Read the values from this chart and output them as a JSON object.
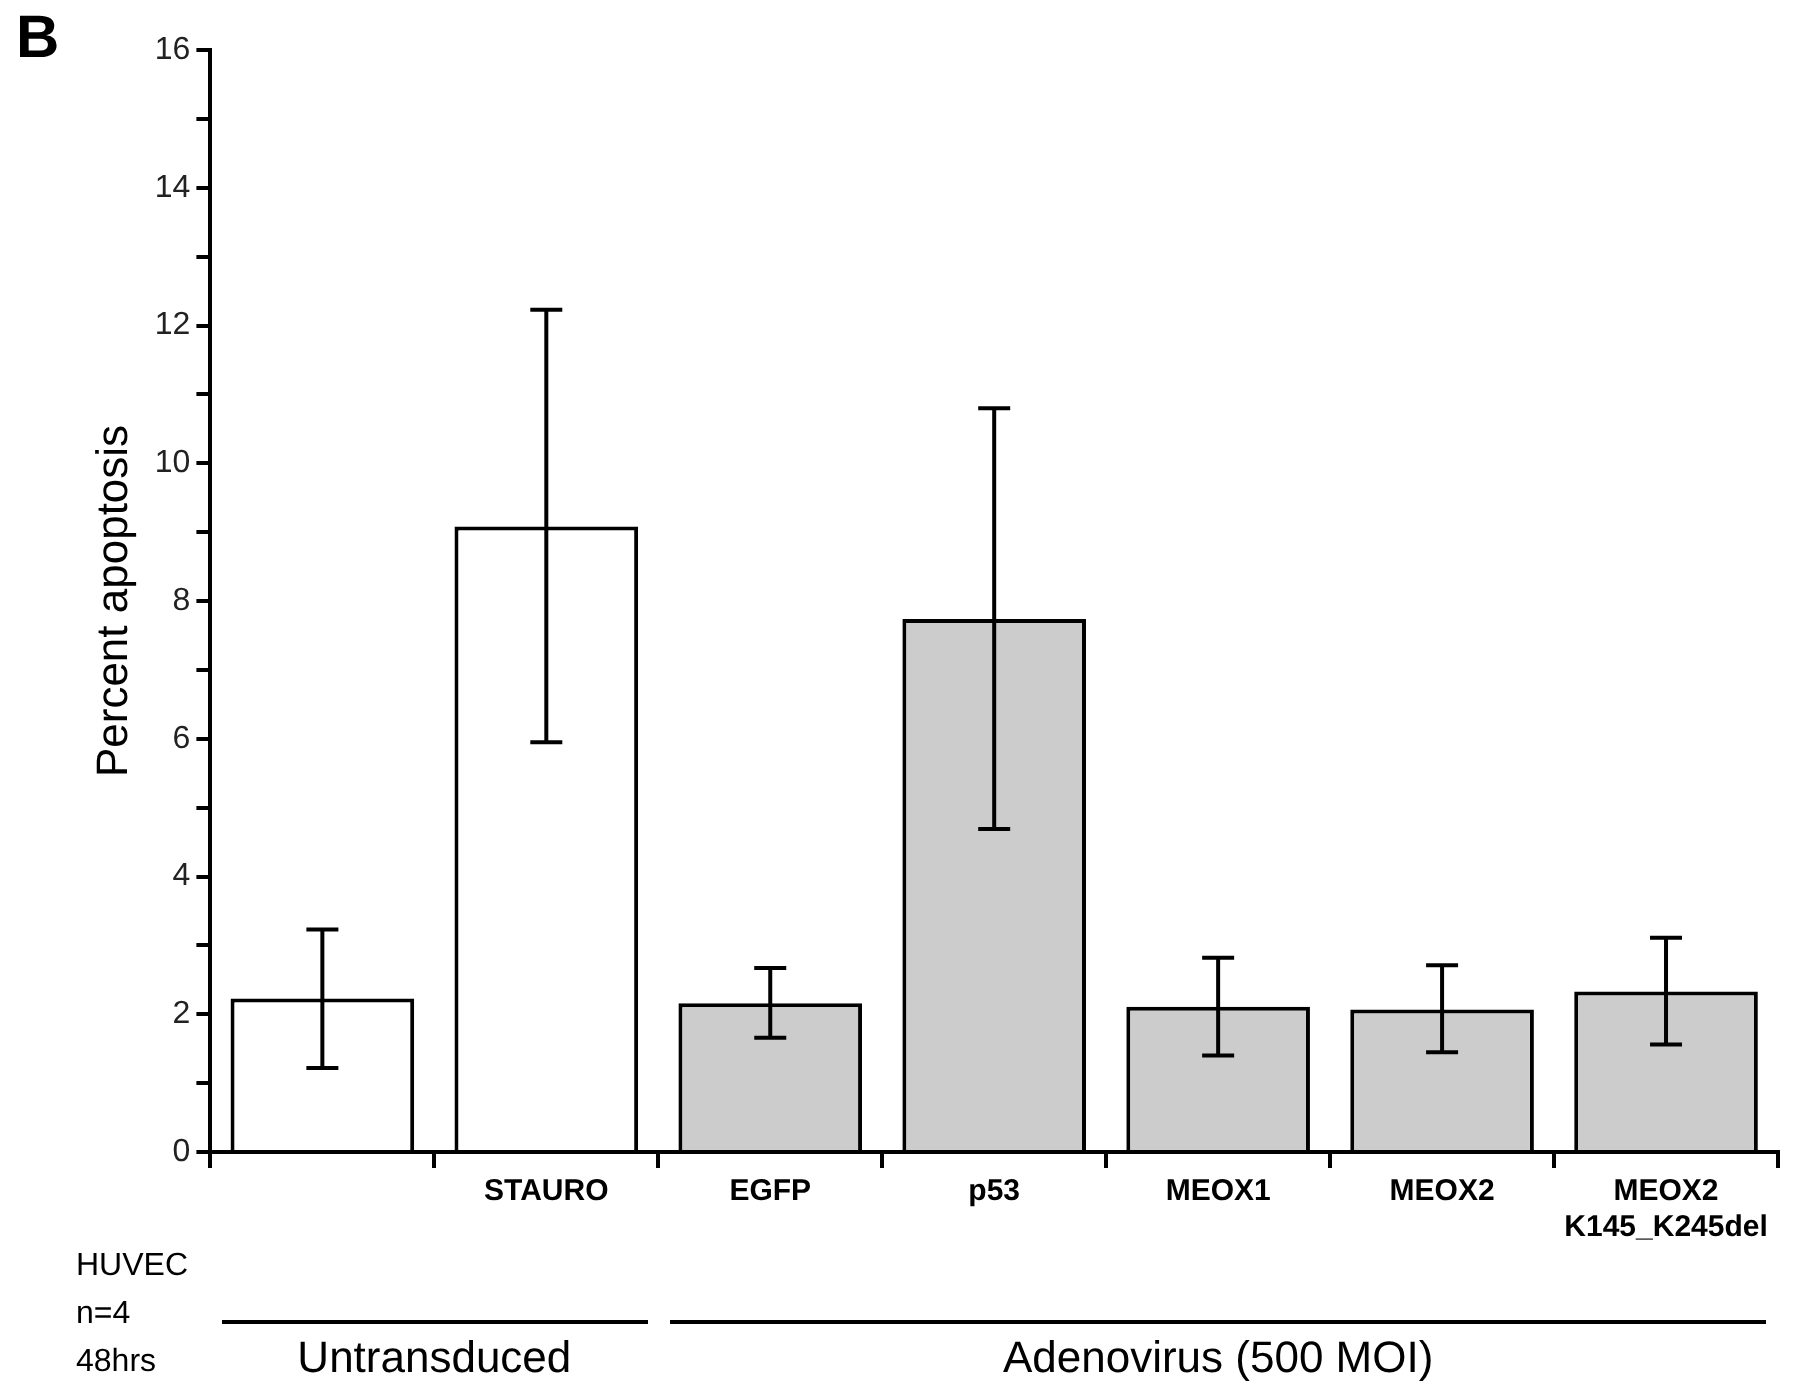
{
  "chart_data": {
    "type": "bar",
    "ylabel": "Percent apoptosis",
    "categories": [
      null,
      "STAURO",
      "EGFP",
      "p53",
      "MEOX1",
      "MEOX2",
      "MEOX2\nK145_K245del"
    ],
    "values": [
      2.23,
      9.08,
      2.16,
      7.74,
      2.11,
      2.07,
      2.33
    ],
    "errors": [
      [
        1.22,
        3.23
      ],
      [
        5.95,
        12.23
      ],
      [
        1.66,
        2.67
      ],
      [
        4.69,
        10.8
      ],
      [
        1.4,
        2.82
      ],
      [
        1.45,
        2.71
      ],
      [
        1.56,
        3.11
      ]
    ],
    "colors": [
      "#ffffff",
      "#ffffff",
      "#cccccc",
      "#cccccc",
      "#cccccc",
      "#cccccc",
      "#cccccc"
    ],
    "ylim": [
      0,
      16
    ],
    "yticks": [
      0,
      {
        "value": 1,
        "label": null
      },
      2,
      {
        "value": 3,
        "label": null
      },
      4,
      {
        "value": 5,
        "label": null
      },
      6,
      {
        "value": 7,
        "label": null
      },
      8,
      {
        "value": 9,
        "label": null
      },
      10,
      {
        "value": 11,
        "label": null
      },
      12,
      {
        "value": 13,
        "label": null
      },
      14,
      {
        "value": 15,
        "label": null
      },
      16
    ],
    "annotations": [
      "B",
      "HUVEC",
      "n=4",
      "48hrs",
      "Untransduced",
      "Adenovirus (500 MOI)"
    ],
    "grid": false,
    "legend": false
  }
}
